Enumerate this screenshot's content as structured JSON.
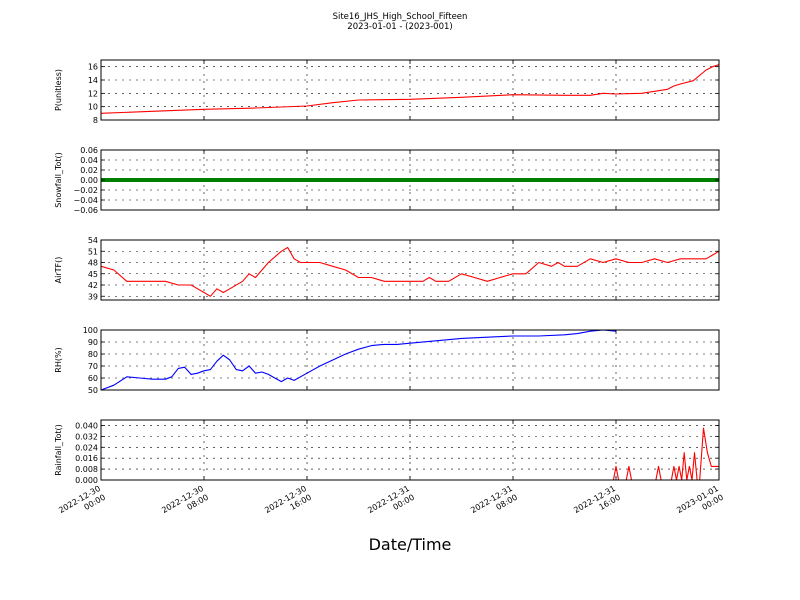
{
  "title_line1": "Site16_JHS_High_School_Fifteen",
  "title_line2": "2023-01-01 - (2023-001)",
  "xlabel": "Date/Time",
  "chart_data": [
    {
      "type": "line",
      "ylabel": "P(unitless)",
      "color": "#ff0000",
      "ylim": [
        8,
        17
      ],
      "yticks": [
        "8",
        "10",
        "12",
        "14",
        "16"
      ],
      "ytick_values": [
        8,
        10,
        12,
        14,
        16
      ],
      "x_hours": [
        0,
        4,
        8,
        12,
        16,
        18,
        20,
        24,
        28,
        32,
        36,
        38,
        39,
        40,
        42,
        44,
        44.5,
        45,
        46,
        47,
        47.5,
        48
      ],
      "y": [
        9.0,
        9.3,
        9.6,
        9.8,
        10.1,
        10.6,
        11.0,
        11.1,
        11.4,
        11.8,
        11.7,
        11.7,
        12.0,
        11.9,
        12.0,
        12.6,
        13.1,
        13.4,
        13.9,
        15.5,
        16.0,
        16.3
      ]
    },
    {
      "type": "line",
      "ylabel": "Snowfall_Tot()",
      "color": "#008000",
      "ylim": [
        -0.06,
        0.06
      ],
      "yticks": [
        "−0.06",
        "−0.04",
        "−0.02",
        "0.00",
        "0.02",
        "0.04",
        "0.06"
      ],
      "ytick_values": [
        -0.06,
        -0.04,
        -0.02,
        0,
        0.02,
        0.04,
        0.06
      ],
      "x_hours": [
        0,
        48
      ],
      "y": [
        0,
        0
      ]
    },
    {
      "type": "line",
      "ylabel": "AirTF()",
      "color": "#ff0000",
      "ylim": [
        38,
        54
      ],
      "yticks": [
        "39",
        "42",
        "45",
        "48",
        "51",
        "54"
      ],
      "ytick_values": [
        39,
        42,
        45,
        48,
        51,
        54
      ],
      "x_hours": [
        0,
        1,
        2,
        2.5,
        3,
        4,
        5,
        6,
        7,
        7.5,
        8,
        8.5,
        9,
        9.5,
        10,
        11,
        11.5,
        12,
        13,
        14,
        14.5,
        15,
        15.5,
        16,
        17,
        18,
        19,
        20,
        21,
        22,
        23,
        24,
        25,
        25.5,
        26,
        27,
        28,
        29,
        30,
        31,
        32,
        32.5,
        33,
        34,
        35,
        35.5,
        36,
        37,
        38,
        39,
        40,
        41,
        42,
        43,
        44,
        45,
        46,
        47,
        47.5,
        48
      ],
      "y": [
        47,
        46,
        43,
        43,
        43,
        43,
        43,
        42,
        42,
        41,
        40,
        39,
        41,
        40,
        41,
        43,
        45,
        44,
        48,
        51,
        52,
        49,
        48,
        48,
        48,
        47,
        46,
        44,
        44,
        43,
        43,
        43,
        43,
        44,
        43,
        43,
        45,
        44,
        43,
        44,
        45,
        45,
        45,
        48,
        47,
        48,
        47,
        47,
        49,
        48,
        49,
        48,
        48,
        49,
        48,
        49,
        49,
        49,
        50,
        51
      ]
    },
    {
      "type": "line",
      "ylabel": "RH(%)",
      "color": "#0000ff",
      "ylim": [
        50,
        100
      ],
      "yticks": [
        "50",
        "60",
        "70",
        "80",
        "90",
        "100"
      ],
      "ytick_values": [
        50,
        60,
        70,
        80,
        90,
        100
      ],
      "x_hours": [
        0,
        1,
        2,
        3,
        4,
        5,
        5.5,
        6,
        6.5,
        7,
        7.5,
        8,
        8.5,
        9,
        9.5,
        10,
        10.5,
        11,
        11.5,
        12,
        12.5,
        13,
        13.5,
        14,
        14.5,
        15,
        16,
        17,
        18,
        19,
        20,
        21,
        22,
        23,
        24,
        26,
        28,
        30,
        32,
        34,
        36,
        37,
        38,
        39,
        40
      ],
      "y": [
        50,
        54,
        61,
        60,
        59,
        59,
        61,
        68,
        69,
        63,
        64,
        66,
        67,
        74,
        79,
        75,
        67,
        66,
        70,
        64,
        65,
        63,
        60,
        57,
        60,
        58,
        64,
        70,
        75,
        80,
        84,
        87,
        88,
        88,
        89,
        91,
        93,
        94,
        95,
        95,
        96,
        97,
        99,
        100,
        99
      ]
    },
    {
      "type": "line",
      "ylabel": "Rainfall_Tot()",
      "color": "#ff0000",
      "ylim": [
        0,
        0.044
      ],
      "yticks": [
        "0.000",
        "0.008",
        "0.016",
        "0.024",
        "0.032",
        "0.040"
      ],
      "ytick_values": [
        0,
        0.008,
        0.016,
        0.024,
        0.032,
        0.04
      ],
      "x_hours": [
        0,
        39.8,
        40.0,
        40.2,
        40.8,
        41.0,
        41.2,
        43.1,
        43.3,
        43.5,
        44.3,
        44.5,
        44.7,
        44.9,
        45.1,
        45.3,
        45.5,
        45.7,
        45.9,
        46.1,
        46.3,
        46.5,
        46.8,
        47.1,
        47.4,
        47.7,
        48
      ],
      "y": [
        0,
        0,
        0.01,
        0,
        0,
        0.01,
        0,
        0,
        0.01,
        0,
        0,
        0.01,
        0,
        0.01,
        0,
        0.02,
        0,
        0.01,
        0,
        0.02,
        0,
        0,
        0.038,
        0.02,
        0.01,
        0.01,
        0.01
      ]
    }
  ],
  "x_ticks": [
    {
      "hour": 0,
      "line1": "2022-12-30",
      "line2": "00:00"
    },
    {
      "hour": 8,
      "line1": "2022-12-30",
      "line2": "08:00"
    },
    {
      "hour": 16,
      "line1": "2022-12-30",
      "line2": "16:00"
    },
    {
      "hour": 24,
      "line1": "2022-12-31",
      "line2": "00:00"
    },
    {
      "hour": 32,
      "line1": "2022-12-31",
      "line2": "08:00"
    },
    {
      "hour": 40,
      "line1": "2022-12-31",
      "line2": "16:00"
    },
    {
      "hour": 48,
      "line1": "2023-01-01",
      "line2": "00:00"
    }
  ]
}
